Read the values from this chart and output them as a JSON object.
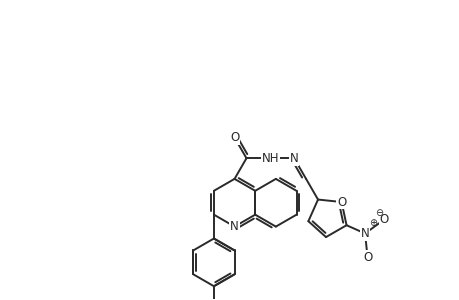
{
  "background_color": "#ffffff",
  "line_color": "#2a2a2a",
  "line_width": 1.4,
  "dbo": 0.06,
  "fs": 8.5,
  "figsize": [
    4.6,
    3.0
  ],
  "dpi": 100,
  "xlim": [
    0,
    10
  ],
  "ylim": [
    0,
    6.5
  ]
}
